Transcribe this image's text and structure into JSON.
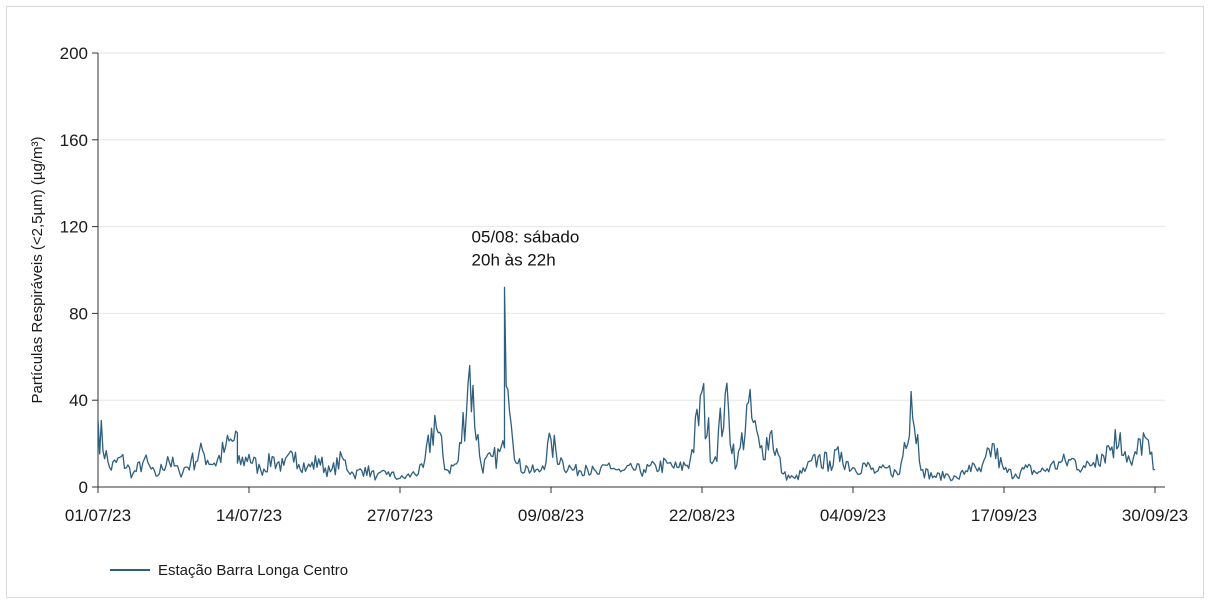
{
  "chart_data": {
    "type": "line",
    "ylabel": "Partículas Respiráveis (<2,5µm) (µg/m³)",
    "xlabel": "",
    "ylim": [
      0,
      200
    ],
    "yticks": [
      "0",
      "40",
      "80",
      "120",
      "160",
      "200"
    ],
    "xticks": [
      "01/07/23",
      "14/07/23",
      "27/07/23",
      "09/08/23",
      "22/08/23",
      "04/09/23",
      "17/09/23",
      "30/09/23"
    ],
    "x_start": "2023-07-01",
    "x_end": "2023-09-30",
    "grid": true,
    "legend_position": "bottom-left",
    "color": "#2f5f7e",
    "annotation": {
      "lines": [
        "05/08: sábado",
        "20h às 22h"
      ]
    },
    "series": [
      {
        "name": "Estação Barra Longa Centro",
        "points": [
          [
            "2023-07-01",
            15
          ],
          [
            "2023-07-01",
            31
          ],
          [
            "2023-07-02",
            9
          ],
          [
            "2023-07-03",
            14
          ],
          [
            "2023-07-04",
            6
          ],
          [
            "2023-07-05",
            13
          ],
          [
            "2023-07-06",
            5
          ],
          [
            "2023-07-07",
            14
          ],
          [
            "2023-07-08",
            7
          ],
          [
            "2023-07-09",
            12
          ],
          [
            "2023-07-10",
            17
          ],
          [
            "2023-07-11",
            11
          ],
          [
            "2023-07-12",
            19
          ],
          [
            "2023-07-13",
            25
          ],
          [
            "2023-07-13",
            11
          ],
          [
            "2023-07-14",
            15
          ],
          [
            "2023-07-15",
            8
          ],
          [
            "2023-07-16",
            14
          ],
          [
            "2023-07-17",
            10
          ],
          [
            "2023-07-18",
            16
          ],
          [
            "2023-07-19",
            9
          ],
          [
            "2023-07-20",
            13
          ],
          [
            "2023-07-21",
            7
          ],
          [
            "2023-07-22",
            14
          ],
          [
            "2023-07-23",
            6
          ],
          [
            "2023-07-24",
            9
          ],
          [
            "2023-07-25",
            5
          ],
          [
            "2023-07-26",
            7
          ],
          [
            "2023-07-27",
            4
          ],
          [
            "2023-07-28",
            6
          ],
          [
            "2023-07-29",
            9
          ],
          [
            "2023-07-30",
            33
          ],
          [
            "2023-07-31",
            8
          ],
          [
            "2023-08-01",
            12
          ],
          [
            "2023-08-02",
            56
          ],
          [
            "2023-08-03",
            10
          ],
          [
            "2023-08-04",
            14
          ],
          [
            "2023-08-05",
            18
          ],
          [
            "2023-08-05",
            92
          ],
          [
            "2023-08-06",
            11
          ],
          [
            "2023-08-07",
            9
          ],
          [
            "2023-08-08",
            7
          ],
          [
            "2023-08-09",
            22
          ],
          [
            "2023-08-10",
            12
          ],
          [
            "2023-08-11",
            8
          ],
          [
            "2023-08-12",
            10
          ],
          [
            "2023-08-13",
            6
          ],
          [
            "2023-08-14",
            11
          ],
          [
            "2023-08-15",
            7
          ],
          [
            "2023-08-16",
            9
          ],
          [
            "2023-08-17",
            8
          ],
          [
            "2023-08-18",
            10
          ],
          [
            "2023-08-19",
            11
          ],
          [
            "2023-08-20",
            9
          ],
          [
            "2023-08-21",
            13
          ],
          [
            "2023-08-22",
            44
          ],
          [
            "2023-08-23",
            12
          ],
          [
            "2023-08-24",
            43
          ],
          [
            "2023-08-25",
            10
          ],
          [
            "2023-08-26",
            39
          ],
          [
            "2023-08-27",
            18
          ],
          [
            "2023-08-28",
            26
          ],
          [
            "2023-08-29",
            6
          ],
          [
            "2023-08-30",
            4
          ],
          [
            "2023-08-31",
            9
          ],
          [
            "2023-09-01",
            14
          ],
          [
            "2023-09-02",
            12
          ],
          [
            "2023-09-03",
            16
          ],
          [
            "2023-09-04",
            9
          ],
          [
            "2023-09-05",
            11
          ],
          [
            "2023-09-06",
            7
          ],
          [
            "2023-09-07",
            9
          ],
          [
            "2023-09-08",
            6
          ],
          [
            "2023-09-09",
            44
          ],
          [
            "2023-09-10",
            8
          ],
          [
            "2023-09-11",
            5
          ],
          [
            "2023-09-12",
            6
          ],
          [
            "2023-09-13",
            4
          ],
          [
            "2023-09-14",
            10
          ],
          [
            "2023-09-15",
            7
          ],
          [
            "2023-09-16",
            20
          ],
          [
            "2023-09-17",
            8
          ],
          [
            "2023-09-18",
            6
          ],
          [
            "2023-09-19",
            9
          ],
          [
            "2023-09-20",
            7
          ],
          [
            "2023-09-21",
            10
          ],
          [
            "2023-09-22",
            12
          ],
          [
            "2023-09-23",
            13
          ],
          [
            "2023-09-24",
            9
          ],
          [
            "2023-09-25",
            15
          ],
          [
            "2023-09-26",
            19
          ],
          [
            "2023-09-27",
            25
          ],
          [
            "2023-09-28",
            10
          ],
          [
            "2023-09-29",
            25
          ],
          [
            "2023-09-30",
            8
          ]
        ]
      }
    ]
  }
}
